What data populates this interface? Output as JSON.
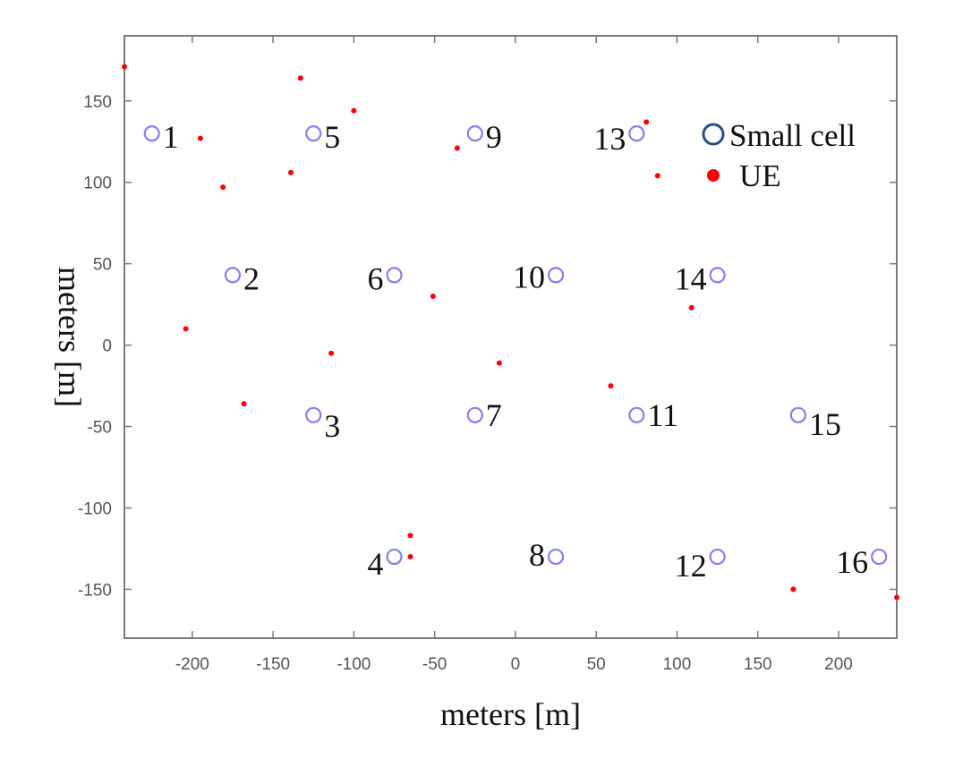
{
  "chart_data": {
    "type": "scatter",
    "title": "",
    "xlabel": "meters [m]",
    "ylabel": "meters [m]",
    "xlim": [
      -242,
      236
    ],
    "ylim": [
      -180,
      190
    ],
    "xticks": [
      -200,
      -150,
      -100,
      -50,
      0,
      50,
      100,
      150,
      200
    ],
    "yticks": [
      150,
      100,
      50,
      0,
      -50,
      -100,
      -150
    ],
    "grid": false,
    "legend": {
      "placement": "top-right",
      "entries": [
        {
          "name": "Small cell",
          "marker": "open-circle",
          "color": "#2b4c8c"
        },
        {
          "name": "UE",
          "marker": "filled-dot",
          "color": "#ff0000"
        }
      ]
    },
    "series": [
      {
        "name": "Small cell",
        "color": "#8080f0",
        "points": [
          {
            "id": "1",
            "x": -225,
            "y": 130
          },
          {
            "id": "2",
            "x": -175,
            "y": 43
          },
          {
            "id": "3",
            "x": -125,
            "y": -43
          },
          {
            "id": "4",
            "x": -75,
            "y": -130
          },
          {
            "id": "5",
            "x": -125,
            "y": 130
          },
          {
            "id": "6",
            "x": -75,
            "y": 43
          },
          {
            "id": "7",
            "x": -25,
            "y": -43
          },
          {
            "id": "8",
            "x": 25,
            "y": -130
          },
          {
            "id": "9",
            "x": -25,
            "y": 130
          },
          {
            "id": "10",
            "x": 25,
            "y": 43
          },
          {
            "id": "11",
            "x": 75,
            "y": -43
          },
          {
            "id": "12",
            "x": 125,
            "y": -130
          },
          {
            "id": "13",
            "x": 75,
            "y": 130
          },
          {
            "id": "14",
            "x": 125,
            "y": 43
          },
          {
            "id": "15",
            "x": 175,
            "y": -43
          },
          {
            "id": "16",
            "x": 225,
            "y": -130
          }
        ]
      },
      {
        "name": "UE",
        "color": "#ff0000",
        "points": [
          {
            "x": -242,
            "y": 171
          },
          {
            "x": -133,
            "y": 164
          },
          {
            "x": -100,
            "y": 144
          },
          {
            "x": -195,
            "y": 127
          },
          {
            "x": -36,
            "y": 121
          },
          {
            "x": -139,
            "y": 106
          },
          {
            "x": -181,
            "y": 97
          },
          {
            "x": 81,
            "y": 137
          },
          {
            "x": 88,
            "y": 104
          },
          {
            "x": -51,
            "y": 30
          },
          {
            "x": 109,
            "y": 23
          },
          {
            "x": -204,
            "y": 10
          },
          {
            "x": -114,
            "y": -5
          },
          {
            "x": -10,
            "y": -11
          },
          {
            "x": 59,
            "y": -25
          },
          {
            "x": -168,
            "y": -36
          },
          {
            "x": -65,
            "y": -117
          },
          {
            "x": -65,
            "y": -130
          },
          {
            "x": 172,
            "y": -150
          },
          {
            "x": 236,
            "y": -155
          }
        ]
      }
    ]
  }
}
